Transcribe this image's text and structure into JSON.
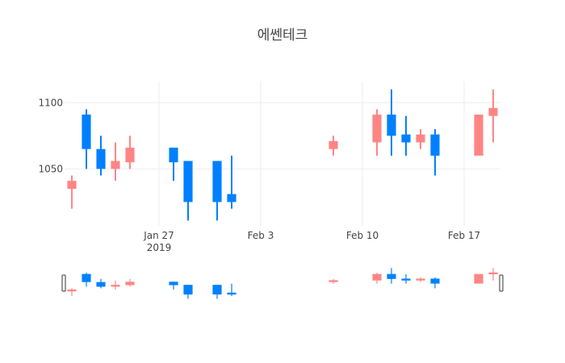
{
  "chart_data": {
    "type": "candlestick",
    "title": "에쎈테크",
    "xlabel": "",
    "ylabel": "",
    "x_ticks": [
      {
        "date": "2019-01-27",
        "label": "Jan 27",
        "sublabel": "2019"
      },
      {
        "date": "2019-02-03",
        "label": "Feb 3"
      },
      {
        "date": "2019-02-10",
        "label": "Feb 10"
      },
      {
        "date": "2019-02-17",
        "label": "Feb 17"
      }
    ],
    "y_ticks": [
      1050,
      1100
    ],
    "x_range": [
      "2019-01-21",
      "2019-02-19"
    ],
    "ylim": [
      1007,
      1116
    ],
    "increasing_color": "#ff8585",
    "decreasing_color": "#0080ff",
    "rangeslider": true,
    "candles": [
      {
        "date": "2019-01-21",
        "open": 1035,
        "high": 1045,
        "low": 1020,
        "close": 1041
      },
      {
        "date": "2019-01-22",
        "open": 1091,
        "high": 1095,
        "low": 1050,
        "close": 1065
      },
      {
        "date": "2019-01-23",
        "open": 1065,
        "high": 1075,
        "low": 1045,
        "close": 1050
      },
      {
        "date": "2019-01-24",
        "open": 1050,
        "high": 1070,
        "low": 1041,
        "close": 1056
      },
      {
        "date": "2019-01-25",
        "open": 1055,
        "high": 1075,
        "low": 1050,
        "close": 1066
      },
      {
        "date": "2019-01-28",
        "open": 1066,
        "high": 1066,
        "low": 1041,
        "close": 1055
      },
      {
        "date": "2019-01-29",
        "open": 1056,
        "high": 1056,
        "low": 1011,
        "close": 1025
      },
      {
        "date": "2019-01-31",
        "open": 1056,
        "high": 1056,
        "low": 1011,
        "close": 1025
      },
      {
        "date": "2019-02-01",
        "open": 1031,
        "high": 1060,
        "low": 1020,
        "close": 1025
      },
      {
        "date": "2019-02-08",
        "open": 1065,
        "high": 1075,
        "low": 1060,
        "close": 1071
      },
      {
        "date": "2019-02-11",
        "open": 1070,
        "high": 1095,
        "low": 1060,
        "close": 1091
      },
      {
        "date": "2019-02-12",
        "open": 1091,
        "high": 1110,
        "low": 1060,
        "close": 1075
      },
      {
        "date": "2019-02-13",
        "open": 1076,
        "high": 1090,
        "low": 1060,
        "close": 1070
      },
      {
        "date": "2019-02-14",
        "open": 1070,
        "high": 1080,
        "low": 1065,
        "close": 1076
      },
      {
        "date": "2019-02-15",
        "open": 1076,
        "high": 1080,
        "low": 1045,
        "close": 1060
      },
      {
        "date": "2019-02-18",
        "open": 1060,
        "high": 1091,
        "low": 1060,
        "close": 1091
      },
      {
        "date": "2019-02-19",
        "open": 1090,
        "high": 1110,
        "low": 1070,
        "close": 1096
      }
    ]
  }
}
